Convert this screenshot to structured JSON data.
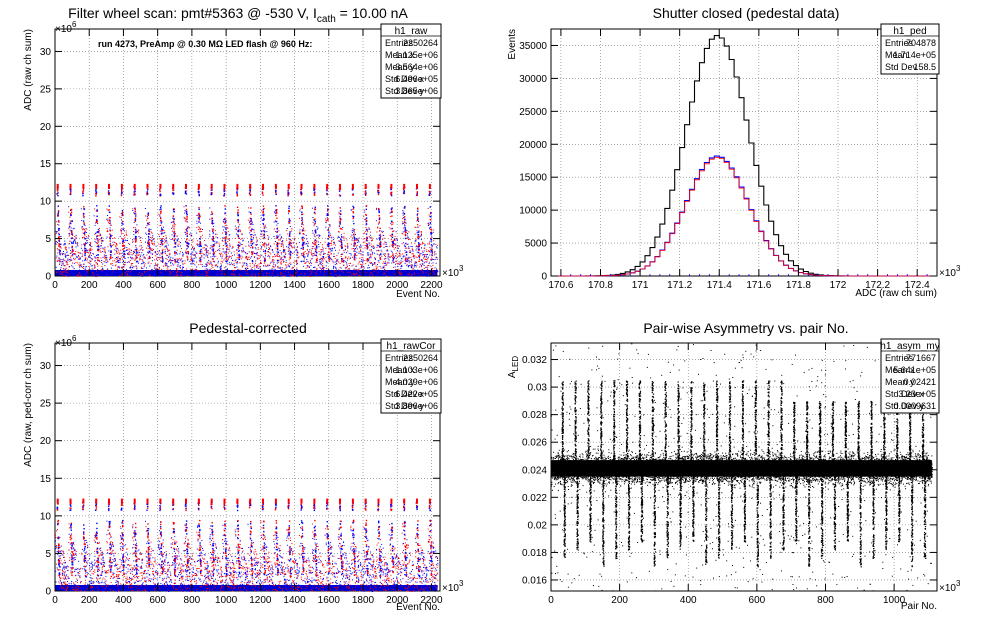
{
  "chart_data": [
    {
      "id": "raw",
      "type": "scatter",
      "title": "Filter wheel scan: pmt#5363 @  -530 V, I",
      "title_sub": "cath",
      "title_tail": " = 10.00 nA",
      "annotation": "run 4273, PreAmp @ 0.30 MΩ LED flash @  960 Hz:",
      "xlabel": "Event No.",
      "ylabel": "ADC (raw ch sum)",
      "xlim": [
        0,
        2250
      ],
      "ylim": [
        0,
        33
      ],
      "x_exponent": "×10",
      "x_exponent_power": "3",
      "y_exponent": "×10",
      "y_exponent_power": "6",
      "xticks": [
        0,
        200,
        400,
        600,
        800,
        1000,
        1200,
        1400,
        1600,
        1800,
        2000,
        2200
      ],
      "yticks": [
        0,
        5,
        10,
        15,
        20,
        25,
        30
      ],
      "grid": true,
      "flash_period": 75,
      "flash_levels": [
        12,
        9.5,
        6.5,
        4.5
      ],
      "series_colors": [
        "#ff0000",
        "#0000ff"
      ],
      "stats": {
        "name": "h1_raw",
        "rows": [
          {
            "label": "Entries",
            "value": "2250264"
          },
          {
            "label": "Mean x",
            "value": "1.125e+06"
          },
          {
            "label": "Mean y",
            "value": "3.564e+06"
          },
          {
            "label": "Std Dev x",
            "value": "6.496e+05"
          },
          {
            "label": "Std Dev y",
            "value": "3.865e+06"
          }
        ]
      }
    },
    {
      "id": "ped",
      "type": "line",
      "title": "Shutter closed (pedestal data)",
      "xlabel": "ADC (raw ch sum)",
      "ylabel": "Events",
      "xlim": [
        170.55,
        172.5
      ],
      "ylim": [
        0,
        37500
      ],
      "x_exponent": "×10",
      "x_exponent_power": "3",
      "xticks": [
        170.6,
        170.8,
        171,
        171.2,
        171.4,
        171.6,
        171.8,
        172,
        172.2,
        172.4
      ],
      "xtick_labels": [
        "170.6",
        "170.8",
        "171",
        "171.2",
        "171.4",
        "171.6",
        "171.8",
        "172",
        "172.2",
        "172.4"
      ],
      "yticks": [
        0,
        5000,
        10000,
        15000,
        20000,
        25000,
        30000,
        35000
      ],
      "grid": true,
      "series": [
        {
          "color": "#000000",
          "mean": 171.39,
          "sigma": 0.1585,
          "peak": 36500
        },
        {
          "color": "#0000ff",
          "mean": 171.39,
          "sigma": 0.1585,
          "peak": 18200
        },
        {
          "color": "#ff0000",
          "mean": 171.39,
          "sigma": 0.1585,
          "peak": 18000
        }
      ],
      "stats": {
        "name": "h1_ped",
        "rows": [
          {
            "label": "Entries",
            "value": "704878"
          },
          {
            "label": "Mean",
            "value": "1.714e+05"
          },
          {
            "label": "Std Dev",
            "value": "158.5"
          }
        ]
      }
    },
    {
      "id": "rawcor",
      "type": "scatter",
      "title": "Pedestal-corrected",
      "xlabel": "Event No.",
      "ylabel": "ADC (raw, ped-corr ch sum)",
      "xlim": [
        0,
        2250
      ],
      "ylim": [
        0,
        33
      ],
      "x_exponent": "×10",
      "x_exponent_power": "3",
      "y_exponent": "×10",
      "y_exponent_power": "6",
      "xticks": [
        0,
        200,
        400,
        600,
        800,
        1000,
        1200,
        1400,
        1600,
        1800,
        2000,
        2200
      ],
      "yticks": [
        0,
        5,
        10,
        15,
        20,
        25,
        30
      ],
      "grid": true,
      "flash_period": 75,
      "flash_levels": [
        12,
        9.5,
        6.5,
        4.5
      ],
      "series_colors": [
        "#ff0000",
        "#0000ff"
      ],
      "stats": {
        "name": "h1_rawCor",
        "rows": [
          {
            "label": "Entries",
            "value": "2250264"
          },
          {
            "label": "Mean x",
            "value": "1.103e+06"
          },
          {
            "label": "Mean y",
            "value": "4.029e+06"
          },
          {
            "label": "Std Dev x",
            "value": "6.422e+05"
          },
          {
            "label": "Std Dev y",
            "value": "3.896e+06"
          }
        ]
      }
    },
    {
      "id": "asym",
      "type": "scatter",
      "title": "Pair-wise Asymmetry vs. pair No.",
      "xlabel": "Pair No.",
      "ylabel": "A",
      "ylabel_sub": "LED",
      "xlim": [
        0,
        1125
      ],
      "ylim": [
        0.0152,
        0.0332
      ],
      "x_exponent": "×10",
      "x_exponent_power": "3",
      "xticks": [
        0,
        200,
        400,
        600,
        800,
        1000
      ],
      "yticks": [
        0.016,
        0.018,
        0.02,
        0.022,
        0.024,
        0.026,
        0.028,
        0.03,
        0.032
      ],
      "grid": true,
      "band_center": 0.0241,
      "band_halfwidth": 0.0009,
      "spike_period": 37.5,
      "spike_high": 0.0305,
      "spike_low": 0.017,
      "series_colors": [
        "#000000"
      ],
      "stats": {
        "name": "h1_asym_my",
        "rows": [
          {
            "label": "Entries",
            "value": "771667"
          },
          {
            "label": "Mean x",
            "value": "5.641e+05"
          },
          {
            "label": "Mean y",
            "value": "0.02421"
          },
          {
            "label": "Std Dev x",
            "value": "3.23e+05"
          },
          {
            "label": "Std Dev y",
            "value": "0.0009631"
          }
        ]
      }
    }
  ]
}
